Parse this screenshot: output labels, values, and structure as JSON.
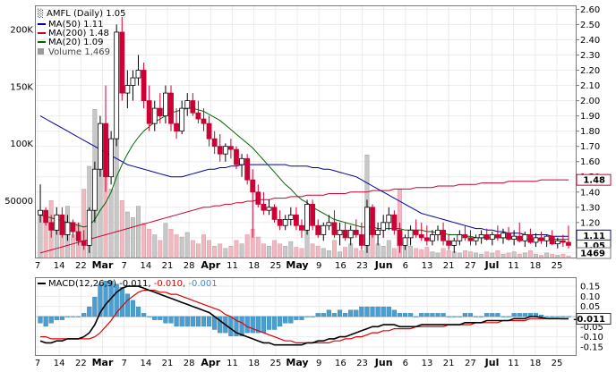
{
  "legend": {
    "ticker": "AMFL (Daily) 1.05",
    "ma50": "MA(50) 1.11",
    "ma200": "MA(200) 1.48",
    "ma20": "MA(20) 1.09",
    "volume": "Volume 1,469"
  },
  "macd_legend": {
    "prefix": "MACD(12,26,9)",
    "macd": "-0.011,",
    "signal": "-0.010,",
    "hist": "-0.001"
  },
  "price_ticks": [
    "2.60",
    "2.50",
    "2.40",
    "2.30",
    "2.20",
    "2.10",
    "2.00",
    "1.90",
    "1.80",
    "1.70",
    "1.60",
    "1.50",
    "1.40",
    "1.30",
    "1.20",
    "1.10",
    "1.00"
  ],
  "volume_ticks": [
    "200K",
    "150K",
    "100K",
    "50000"
  ],
  "macd_ticks": [
    "0.15",
    "0.10",
    "0.05",
    "-0.05",
    "-0.10",
    "-0.15"
  ],
  "badges": {
    "ma200": "1.48",
    "ma50": "1.11",
    "last": "1.05",
    "volume": "1469",
    "macd": "-0.011"
  },
  "x_labels": [
    {
      "t": "7",
      "m": false
    },
    {
      "t": "14",
      "m": false
    },
    {
      "t": "22",
      "m": false
    },
    {
      "t": "Mar",
      "m": true
    },
    {
      "t": "7",
      "m": false
    },
    {
      "t": "14",
      "m": false
    },
    {
      "t": "21",
      "m": false
    },
    {
      "t": "28",
      "m": false
    },
    {
      "t": "Apr",
      "m": true
    },
    {
      "t": "11",
      "m": false
    },
    {
      "t": "18",
      "m": false
    },
    {
      "t": "25",
      "m": false
    },
    {
      "t": "May",
      "m": true
    },
    {
      "t": "9",
      "m": false
    },
    {
      "t": "16",
      "m": false
    },
    {
      "t": "23",
      "m": false
    },
    {
      "t": "Jun",
      "m": true
    },
    {
      "t": "6",
      "m": false
    },
    {
      "t": "13",
      "m": false
    },
    {
      "t": "21",
      "m": false
    },
    {
      "t": "27",
      "m": false
    },
    {
      "t": "Jul",
      "m": true
    },
    {
      "t": "11",
      "m": false
    },
    {
      "t": "18",
      "m": false
    },
    {
      "t": "25",
      "m": false
    }
  ],
  "colors": {
    "up": "#000000",
    "down": "#cc0033",
    "ma50": "#000099",
    "ma200": "#cc0033",
    "ma20": "#006600",
    "macd": "#000000",
    "signal": "#e00000",
    "hist": "#4a9fd0",
    "volume": "#c8c8c8",
    "volume_down": "#f2b8c0"
  },
  "chart_data": {
    "type": "candlestick",
    "ylim": [
      0.97,
      2.62
    ],
    "candles": [
      [
        1.25,
        1.45,
        1.2,
        1.28
      ],
      [
        1.28,
        1.3,
        1.18,
        1.2
      ],
      [
        1.2,
        1.25,
        1.1,
        1.15
      ],
      [
        1.15,
        1.3,
        1.12,
        1.25
      ],
      [
        1.25,
        1.3,
        1.1,
        1.12
      ],
      [
        1.12,
        1.25,
        1.08,
        1.2
      ],
      [
        1.2,
        1.22,
        1.1,
        1.14
      ],
      [
        1.14,
        1.2,
        1.05,
        1.08
      ],
      [
        1.08,
        1.15,
        1.02,
        1.05
      ],
      [
        1.05,
        1.3,
        1.0,
        1.28
      ],
      [
        1.28,
        1.6,
        1.2,
        1.55
      ],
      [
        1.55,
        1.9,
        1.5,
        1.85
      ],
      [
        1.85,
        2.1,
        1.4,
        1.5
      ],
      [
        1.5,
        1.8,
        1.45,
        1.75
      ],
      [
        1.75,
        2.5,
        1.7,
        2.45
      ],
      [
        2.45,
        2.55,
        2.0,
        2.05
      ],
      [
        2.05,
        2.2,
        1.95,
        2.1
      ],
      [
        2.1,
        2.2,
        2.0,
        2.15
      ],
      [
        2.15,
        2.3,
        2.1,
        2.2
      ],
      [
        2.2,
        2.25,
        1.95,
        2.0
      ],
      [
        2.0,
        2.1,
        1.8,
        1.85
      ],
      [
        1.85,
        2.0,
        1.8,
        1.95
      ],
      [
        1.95,
        2.05,
        1.85,
        1.9
      ],
      [
        1.9,
        2.1,
        1.85,
        2.05
      ],
      [
        2.05,
        2.1,
        1.8,
        1.85
      ],
      [
        1.85,
        1.95,
        1.75,
        1.8
      ],
      [
        1.8,
        2.0,
        1.78,
        1.95
      ],
      [
        1.95,
        2.05,
        1.9,
        2.0
      ],
      [
        2.0,
        2.05,
        1.9,
        1.92
      ],
      [
        1.92,
        2.0,
        1.85,
        1.88
      ],
      [
        1.88,
        1.95,
        1.8,
        1.85
      ],
      [
        1.85,
        1.9,
        1.7,
        1.75
      ],
      [
        1.75,
        1.8,
        1.65,
        1.7
      ],
      [
        1.7,
        1.78,
        1.6,
        1.65
      ],
      [
        1.65,
        1.72,
        1.6,
        1.7
      ],
      [
        1.7,
        1.75,
        1.62,
        1.68
      ],
      [
        1.68,
        1.7,
        1.55,
        1.58
      ],
      [
        1.58,
        1.65,
        1.5,
        1.62
      ],
      [
        1.62,
        1.65,
        1.45,
        1.48
      ],
      [
        1.48,
        1.55,
        1.1,
        1.4
      ],
      [
        1.4,
        1.45,
        1.3,
        1.32
      ],
      [
        1.32,
        1.4,
        1.25,
        1.28
      ],
      [
        1.28,
        1.35,
        1.25,
        1.3
      ],
      [
        1.3,
        1.32,
        1.2,
        1.22
      ],
      [
        1.22,
        1.28,
        1.15,
        1.18
      ],
      [
        1.18,
        1.25,
        1.15,
        1.22
      ],
      [
        1.22,
        1.3,
        1.18,
        1.25
      ],
      [
        1.25,
        1.3,
        1.15,
        1.18
      ],
      [
        1.18,
        1.22,
        1.1,
        1.15
      ],
      [
        1.15,
        1.35,
        1.12,
        1.32
      ],
      [
        1.32,
        1.35,
        1.15,
        1.18
      ],
      [
        1.18,
        1.22,
        1.1,
        1.12
      ],
      [
        1.12,
        1.2,
        1.08,
        1.18
      ],
      [
        1.18,
        1.25,
        1.15,
        1.2
      ],
      [
        1.2,
        1.28,
        1.1,
        1.12
      ],
      [
        1.12,
        1.2,
        1.05,
        1.15
      ],
      [
        1.15,
        1.2,
        1.08,
        1.1
      ],
      [
        1.1,
        1.18,
        1.05,
        1.15
      ],
      [
        1.15,
        1.22,
        1.1,
        1.12
      ],
      [
        1.12,
        1.2,
        1.02,
        1.05
      ],
      [
        1.05,
        1.35,
        1.0,
        1.3
      ],
      [
        1.3,
        1.32,
        1.1,
        1.12
      ],
      [
        1.12,
        1.2,
        1.05,
        1.15
      ],
      [
        1.15,
        1.25,
        1.1,
        1.2
      ],
      [
        1.2,
        1.3,
        1.15,
        1.25
      ],
      [
        1.25,
        1.28,
        1.12,
        1.15
      ],
      [
        1.15,
        1.2,
        1.0,
        1.05
      ],
      [
        1.05,
        1.12,
        1.02,
        1.1
      ],
      [
        1.1,
        1.18,
        1.05,
        1.15
      ],
      [
        1.15,
        1.22,
        1.1,
        1.12
      ],
      [
        1.12,
        1.2,
        1.08,
        1.1
      ],
      [
        1.1,
        1.18,
        1.05,
        1.08
      ],
      [
        1.08,
        1.15,
        1.05,
        1.12
      ],
      [
        1.12,
        1.18,
        1.08,
        1.15
      ],
      [
        1.15,
        1.2,
        1.05,
        1.08
      ],
      [
        1.08,
        1.12,
        1.02,
        1.05
      ],
      [
        1.05,
        1.1,
        1.0,
        1.08
      ],
      [
        1.08,
        1.15,
        1.05,
        1.12
      ],
      [
        1.12,
        1.18,
        1.08,
        1.1
      ],
      [
        1.1,
        1.15,
        1.05,
        1.08
      ],
      [
        1.08,
        1.12,
        1.05,
        1.1
      ],
      [
        1.1,
        1.15,
        1.06,
        1.12
      ],
      [
        1.12,
        1.16,
        1.08,
        1.09
      ],
      [
        1.09,
        1.14,
        1.05,
        1.12
      ],
      [
        1.12,
        1.18,
        1.08,
        1.1
      ],
      [
        1.1,
        1.16,
        1.06,
        1.13
      ],
      [
        1.13,
        1.17,
        1.08,
        1.09
      ],
      [
        1.09,
        1.15,
        1.05,
        1.11
      ],
      [
        1.11,
        1.2,
        1.07,
        1.08
      ],
      [
        1.08,
        1.14,
        1.04,
        1.12
      ],
      [
        1.12,
        1.16,
        1.06,
        1.07
      ],
      [
        1.07,
        1.13,
        1.04,
        1.1
      ],
      [
        1.1,
        1.14,
        1.06,
        1.08
      ],
      [
        1.08,
        1.12,
        1.04,
        1.11
      ],
      [
        1.11,
        1.15,
        1.05,
        1.06
      ],
      [
        1.06,
        1.1,
        1.03,
        1.08
      ],
      [
        1.08,
        1.12,
        1.04,
        1.07
      ],
      [
        1.07,
        1.18,
        1.03,
        1.05
      ]
    ],
    "volume": [
      40000,
      35000,
      50000,
      30000,
      25000,
      45000,
      20000,
      30000,
      60000,
      80000,
      130000,
      90000,
      70000,
      60000,
      120000,
      50000,
      40000,
      35000,
      45000,
      30000,
      25000,
      20000,
      15000,
      30000,
      25000,
      20000,
      18000,
      22000,
      15000,
      12000,
      20000,
      15000,
      10000,
      12000,
      8000,
      10000,
      15000,
      12000,
      20000,
      25000,
      18000,
      12000,
      10000,
      15000,
      12000,
      10000,
      14000,
      9000,
      8000,
      30000,
      12000,
      10000,
      8000,
      6000,
      15000,
      5000,
      9000,
      12000,
      8000,
      6000,
      90000,
      20000,
      12000,
      10000,
      15000,
      8000,
      60000,
      12000,
      10000,
      8000,
      7000,
      9000,
      5000,
      4000,
      8000,
      6000,
      5000,
      4000,
      6000,
      5000,
      4000,
      3000,
      5000,
      4000,
      6000,
      3000,
      4000,
      5000,
      3000,
      4000,
      6000,
      3000,
      2000,
      4000,
      3000,
      2000,
      3000,
      1469
    ],
    "macd": [
      -0.12,
      -0.13,
      -0.13,
      -0.12,
      -0.12,
      -0.11,
      -0.11,
      -0.11,
      -0.1,
      -0.08,
      -0.04,
      0.02,
      0.06,
      0.09,
      0.12,
      0.14,
      0.15,
      0.15,
      0.15,
      0.14,
      0.13,
      0.12,
      0.11,
      0.1,
      0.09,
      0.08,
      0.07,
      0.06,
      0.05,
      0.04,
      0.03,
      0.02,
      0.0,
      -0.02,
      -0.04,
      -0.06,
      -0.08,
      -0.09,
      -0.1,
      -0.11,
      -0.12,
      -0.13,
      -0.13,
      -0.14,
      -0.14,
      -0.14,
      -0.14,
      -0.14,
      -0.14,
      -0.13,
      -0.13,
      -0.12,
      -0.12,
      -0.11,
      -0.11,
      -0.1,
      -0.1,
      -0.09,
      -0.08,
      -0.07,
      -0.06,
      -0.05,
      -0.05,
      -0.04,
      -0.04,
      -0.04,
      -0.05,
      -0.05,
      -0.05,
      -0.05,
      -0.04,
      -0.04,
      -0.04,
      -0.04,
      -0.04,
      -0.04,
      -0.04,
      -0.04,
      -0.03,
      -0.03,
      -0.03,
      -0.03,
      -0.02,
      -0.02,
      -0.02,
      -0.02,
      -0.02,
      -0.01,
      -0.01,
      -0.01,
      0.0,
      0.0,
      -0.005,
      -0.01,
      -0.01,
      -0.01,
      -0.011,
      -0.011
    ],
    "signal": [
      -0.1,
      -0.1,
      -0.11,
      -0.11,
      -0.11,
      -0.11,
      -0.11,
      -0.11,
      -0.11,
      -0.11,
      -0.1,
      -0.08,
      -0.05,
      -0.02,
      0.02,
      0.05,
      0.08,
      0.1,
      0.12,
      0.13,
      0.13,
      0.13,
      0.12,
      0.12,
      0.11,
      0.11,
      0.1,
      0.09,
      0.08,
      0.07,
      0.06,
      0.05,
      0.04,
      0.03,
      0.01,
      0.0,
      -0.02,
      -0.03,
      -0.05,
      -0.06,
      -0.07,
      -0.08,
      -0.09,
      -0.1,
      -0.11,
      -0.12,
      -0.12,
      -0.13,
      -0.13,
      -0.13,
      -0.13,
      -0.13,
      -0.13,
      -0.13,
      -0.12,
      -0.12,
      -0.11,
      -0.11,
      -0.1,
      -0.1,
      -0.09,
      -0.08,
      -0.08,
      -0.07,
      -0.07,
      -0.06,
      -0.06,
      -0.06,
      -0.06,
      -0.05,
      -0.05,
      -0.05,
      -0.05,
      -0.05,
      -0.05,
      -0.04,
      -0.04,
      -0.04,
      -0.04,
      -0.04,
      -0.03,
      -0.03,
      -0.03,
      -0.03,
      -0.03,
      -0.02,
      -0.02,
      -0.02,
      -0.02,
      -0.02,
      -0.01,
      -0.01,
      -0.01,
      -0.01,
      -0.01,
      -0.01,
      -0.01,
      -0.01
    ],
    "ma50": [
      1.9,
      1.88,
      1.86,
      1.84,
      1.82,
      1.8,
      1.78,
      1.76,
      1.74,
      1.72,
      1.7,
      1.68,
      1.66,
      1.64,
      1.62,
      1.6,
      1.58,
      1.57,
      1.56,
      1.55,
      1.54,
      1.53,
      1.52,
      1.51,
      1.5,
      1.5,
      1.5,
      1.51,
      1.52,
      1.53,
      1.54,
      1.55,
      1.55,
      1.56,
      1.56,
      1.57,
      1.57,
      1.58,
      1.58,
      1.58,
      1.58,
      1.58,
      1.58,
      1.58,
      1.58,
      1.58,
      1.57,
      1.57,
      1.57,
      1.57,
      1.56,
      1.56,
      1.55,
      1.55,
      1.54,
      1.53,
      1.52,
      1.51,
      1.5,
      1.48,
      1.46,
      1.44,
      1.42,
      1.4,
      1.38,
      1.36,
      1.34,
      1.32,
      1.3,
      1.28,
      1.26,
      1.25,
      1.24,
      1.23,
      1.22,
      1.21,
      1.2,
      1.19,
      1.18,
      1.17,
      1.16,
      1.16,
      1.15,
      1.15,
      1.14,
      1.14,
      1.13,
      1.13,
      1.13,
      1.12,
      1.12,
      1.12,
      1.12,
      1.12,
      1.11,
      1.11,
      1.11,
      1.11
    ],
    "ma200": [
      1.0,
      1.01,
      1.02,
      1.03,
      1.04,
      1.05,
      1.06,
      1.07,
      1.08,
      1.09,
      1.1,
      1.11,
      1.12,
      1.13,
      1.14,
      1.15,
      1.16,
      1.17,
      1.18,
      1.19,
      1.2,
      1.21,
      1.22,
      1.23,
      1.24,
      1.25,
      1.26,
      1.27,
      1.28,
      1.29,
      1.3,
      1.3,
      1.31,
      1.31,
      1.32,
      1.32,
      1.33,
      1.33,
      1.34,
      1.34,
      1.35,
      1.35,
      1.35,
      1.36,
      1.36,
      1.36,
      1.37,
      1.37,
      1.37,
      1.38,
      1.38,
      1.38,
      1.38,
      1.39,
      1.39,
      1.39,
      1.39,
      1.4,
      1.4,
      1.4,
      1.4,
      1.41,
      1.41,
      1.41,
      1.41,
      1.42,
      1.42,
      1.42,
      1.42,
      1.43,
      1.43,
      1.43,
      1.43,
      1.44,
      1.44,
      1.44,
      1.44,
      1.45,
      1.45,
      1.45,
      1.45,
      1.46,
      1.46,
      1.46,
      1.46,
      1.46,
      1.47,
      1.47,
      1.47,
      1.47,
      1.47,
      1.47,
      1.48,
      1.48,
      1.48,
      1.48,
      1.48,
      1.48
    ],
    "ma20": [
      1.25,
      1.24,
      1.23,
      1.22,
      1.21,
      1.2,
      1.19,
      1.18,
      1.17,
      1.18,
      1.22,
      1.28,
      1.33,
      1.4,
      1.5,
      1.58,
      1.65,
      1.71,
      1.76,
      1.8,
      1.83,
      1.86,
      1.88,
      1.9,
      1.92,
      1.93,
      1.94,
      1.95,
      1.95,
      1.94,
      1.93,
      1.91,
      1.89,
      1.87,
      1.84,
      1.81,
      1.78,
      1.75,
      1.72,
      1.69,
      1.65,
      1.61,
      1.57,
      1.53,
      1.49,
      1.45,
      1.42,
      1.38,
      1.35,
      1.33,
      1.3,
      1.28,
      1.26,
      1.24,
      1.22,
      1.21,
      1.2,
      1.19,
      1.18,
      1.17,
      1.17,
      1.17,
      1.16,
      1.16,
      1.16,
      1.16,
      1.16,
      1.15,
      1.15,
      1.15,
      1.15,
      1.14,
      1.14,
      1.13,
      1.13,
      1.12,
      1.12,
      1.12,
      1.11,
      1.11,
      1.1,
      1.1,
      1.1,
      1.1,
      1.1,
      1.1,
      1.1,
      1.1,
      1.09,
      1.09,
      1.09,
      1.09,
      1.09,
      1.09,
      1.09,
      1.09,
      1.09,
      1.09
    ]
  }
}
